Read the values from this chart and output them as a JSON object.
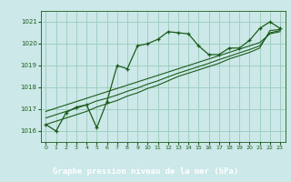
{
  "xlabel": "Graphe pression niveau de la mer (hPa)",
  "background_color": "#cce8e8",
  "plot_bg_color": "#cce8e8",
  "footer_color": "#2d5a1b",
  "grid_color": "#99ccbb",
  "line_color": "#1a5c1a",
  "text_color": "#1a5c1a",
  "xlim": [
    -0.5,
    23.5
  ],
  "ylim": [
    1015.5,
    1021.5
  ],
  "yticks": [
    1016,
    1017,
    1018,
    1019,
    1020,
    1021
  ],
  "xticks": [
    0,
    1,
    2,
    3,
    4,
    5,
    6,
    7,
    8,
    9,
    10,
    11,
    12,
    13,
    14,
    15,
    16,
    17,
    18,
    19,
    20,
    21,
    22,
    23
  ],
  "main_line": [
    1016.3,
    1016.0,
    1016.85,
    1017.1,
    1017.2,
    1016.15,
    1017.35,
    1019.0,
    1018.85,
    1019.9,
    1020.0,
    1020.2,
    1020.55,
    1020.5,
    1020.45,
    1019.9,
    1019.5,
    1019.5,
    1019.8,
    1019.8,
    1020.15,
    1020.7,
    1021.0,
    1020.7
  ],
  "trend_line1": [
    1016.3,
    1016.45,
    1016.6,
    1016.75,
    1016.9,
    1017.1,
    1017.25,
    1017.4,
    1017.6,
    1017.75,
    1017.95,
    1018.1,
    1018.3,
    1018.5,
    1018.65,
    1018.8,
    1018.95,
    1019.1,
    1019.3,
    1019.45,
    1019.6,
    1019.8,
    1020.6,
    1020.65
  ],
  "trend_line2": [
    1016.6,
    1016.75,
    1016.9,
    1017.05,
    1017.2,
    1017.38,
    1017.5,
    1017.65,
    1017.82,
    1017.97,
    1018.15,
    1018.3,
    1018.48,
    1018.65,
    1018.8,
    1018.95,
    1019.1,
    1019.27,
    1019.42,
    1019.58,
    1019.73,
    1019.9,
    1020.5,
    1020.6
  ],
  "trend_line3": [
    1016.9,
    1017.05,
    1017.2,
    1017.35,
    1017.5,
    1017.65,
    1017.8,
    1017.95,
    1018.1,
    1018.25,
    1018.4,
    1018.55,
    1018.7,
    1018.85,
    1019.0,
    1019.15,
    1019.3,
    1019.45,
    1019.6,
    1019.75,
    1019.9,
    1020.05,
    1020.45,
    1020.55
  ]
}
